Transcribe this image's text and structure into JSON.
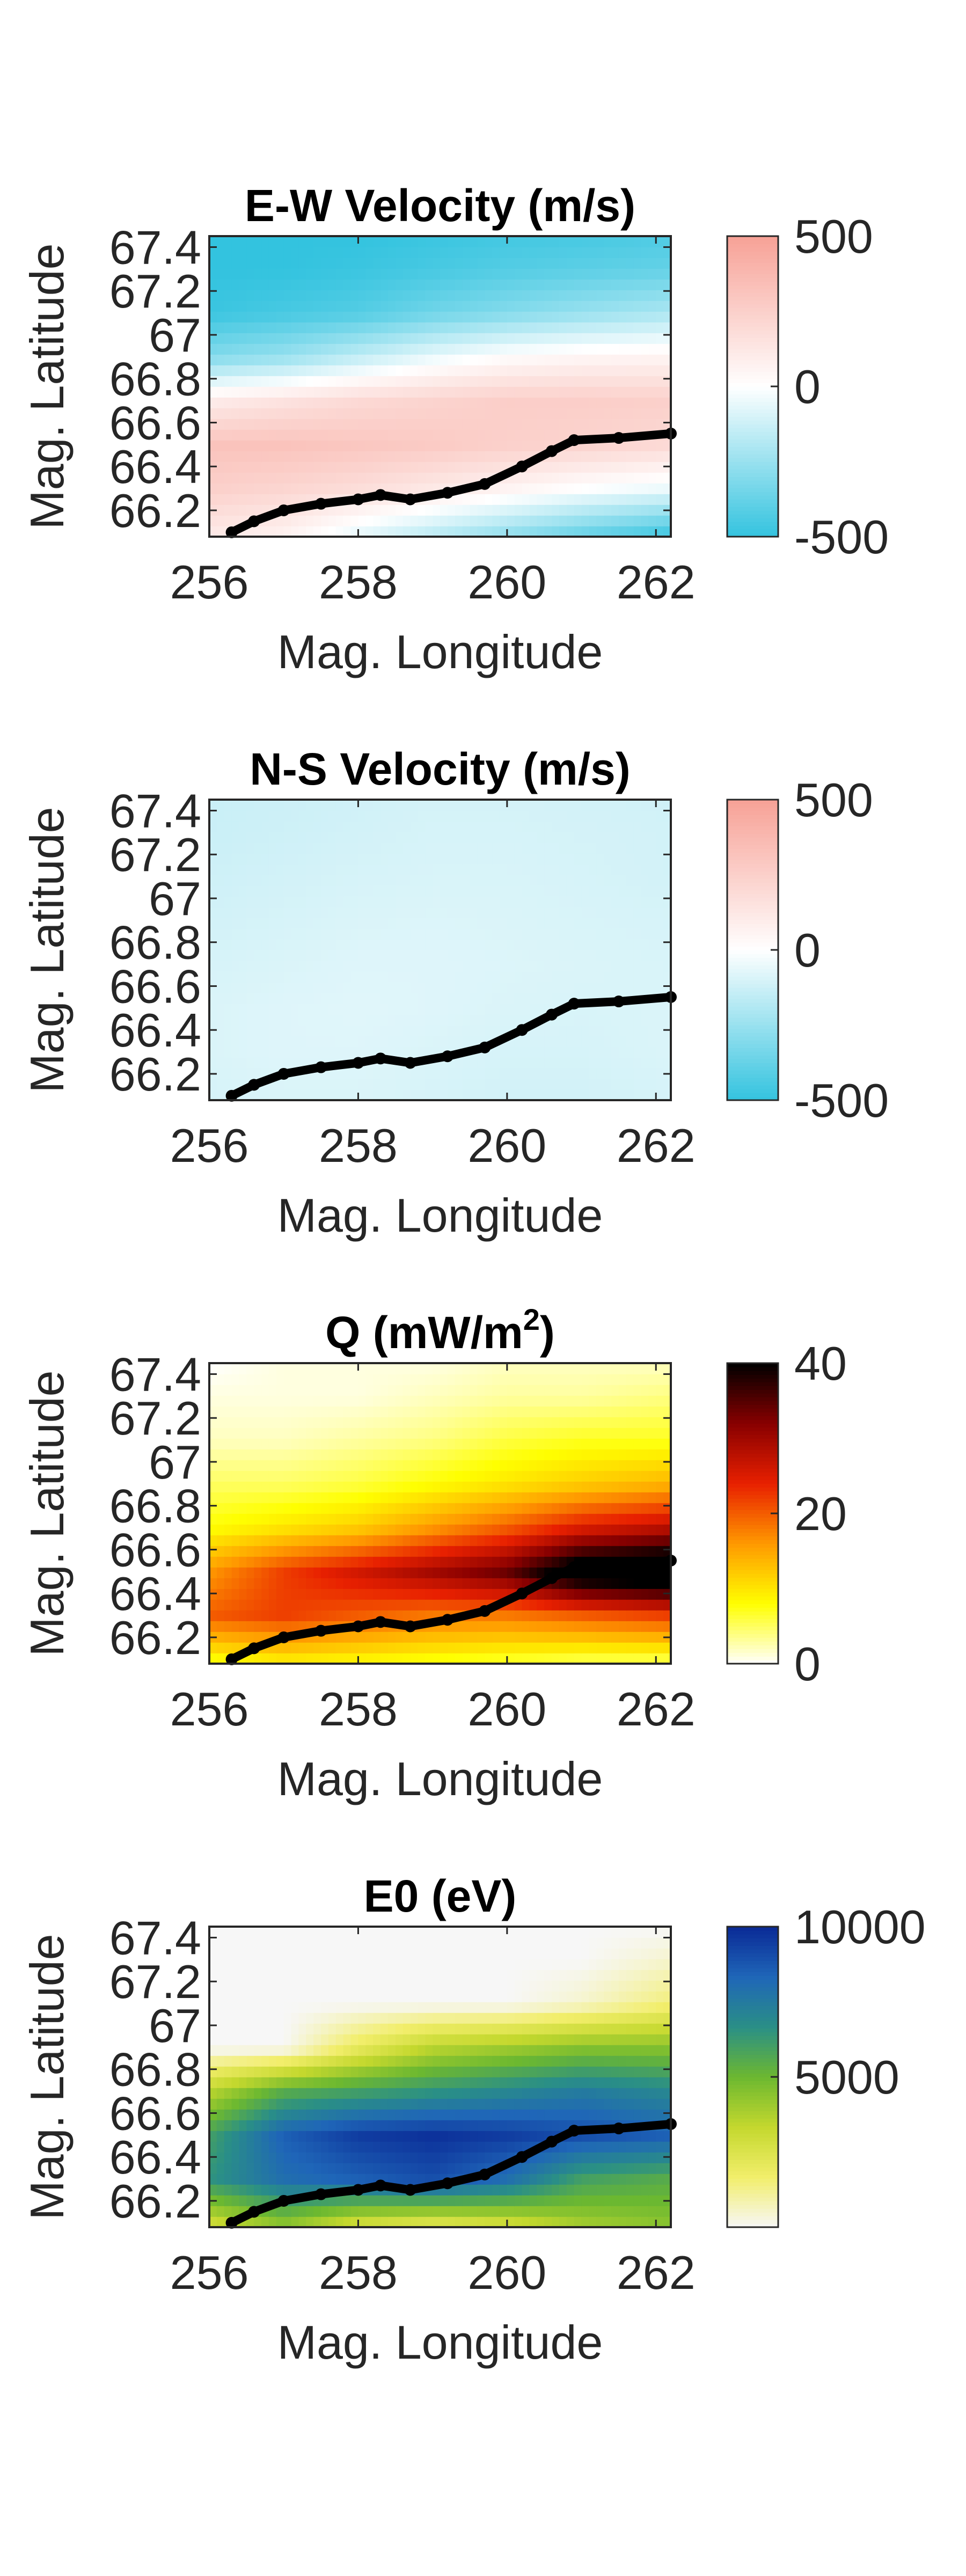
{
  "chart_data": [
    {
      "type": "heatmap",
      "title": "E-W Velocity (m/s)",
      "xlabel": "Mag. Longitude",
      "ylabel": "Mag. Latitude",
      "xlim": [
        256,
        262.2
      ],
      "ylim": [
        66.08,
        67.45
      ],
      "xticks": [
        "256",
        "258",
        "260",
        "262"
      ],
      "yticks": [
        "67.4",
        "67.2",
        "67",
        "66.8",
        "66.6",
        "66.4",
        "66.2"
      ],
      "colorbar": {
        "min": -500,
        "max": 500,
        "ticks": [
          "500",
          "0",
          "-500"
        ],
        "colors": [
          "#33c3df",
          "#ffffff",
          "#f7a196"
        ]
      },
      "x": [
        256,
        257,
        258,
        259,
        260,
        261,
        262.2
      ],
      "y": [
        66.1,
        66.3,
        66.5,
        66.7,
        66.9,
        67.1,
        67.3,
        67.45
      ],
      "z": [
        [
          120,
          80,
          -50,
          -150,
          -250,
          -350,
          -450
        ],
        [
          250,
          220,
          180,
          120,
          60,
          0,
          -50
        ],
        [
          320,
          320,
          300,
          280,
          250,
          230,
          200
        ],
        [
          100,
          150,
          200,
          230,
          260,
          260,
          250
        ],
        [
          -300,
          -250,
          -150,
          -50,
          20,
          50,
          60
        ],
        [
          -480,
          -450,
          -420,
          -350,
          -300,
          -250,
          -200
        ],
        [
          -500,
          -500,
          -480,
          -450,
          -420,
          -400,
          -380
        ],
        [
          -500,
          -500,
          -500,
          -480,
          -460,
          -450,
          -430
        ]
      ],
      "boundary": {
        "x": [
          256.3,
          256.6,
          257,
          257.5,
          258,
          258.3,
          258.7,
          259.2,
          259.7,
          260.2,
          260.6,
          260.9,
          261.5,
          262.2
        ],
        "y": [
          66.1,
          66.15,
          66.2,
          66.23,
          66.25,
          66.27,
          66.25,
          66.28,
          66.32,
          66.4,
          66.47,
          66.52,
          66.53,
          66.55
        ]
      }
    },
    {
      "type": "heatmap",
      "title": "N-S Velocity (m/s)",
      "xlabel": "Mag. Longitude",
      "ylabel": "Mag. Latitude",
      "xlim": [
        256,
        262.2
      ],
      "ylim": [
        66.08,
        67.45
      ],
      "xticks": [
        "256",
        "258",
        "260",
        "262"
      ],
      "yticks": [
        "67.4",
        "67.2",
        "67",
        "66.8",
        "66.6",
        "66.4",
        "66.2"
      ],
      "colorbar": {
        "min": -500,
        "max": 500,
        "ticks": [
          "500",
          "0",
          "-500"
        ],
        "colors": [
          "#33c3df",
          "#ffffff",
          "#f7a196"
        ]
      },
      "x": [
        256,
        257,
        258,
        259,
        260,
        261,
        262.2
      ],
      "y": [
        66.1,
        66.3,
        66.5,
        66.7,
        66.9,
        67.1,
        67.3,
        67.45
      ],
      "z": [
        [
          -100,
          -90,
          -90,
          -100,
          -110,
          -110,
          -100
        ],
        [
          -90,
          -80,
          -80,
          -90,
          -100,
          -100,
          -90
        ],
        [
          -90,
          -80,
          -75,
          -80,
          -90,
          -95,
          -90
        ],
        [
          -100,
          -90,
          -80,
          -80,
          -85,
          -90,
          -95
        ],
        [
          -110,
          -100,
          -90,
          -85,
          -90,
          -95,
          -100
        ],
        [
          -120,
          -110,
          -100,
          -95,
          -95,
          -100,
          -110
        ],
        [
          -130,
          -120,
          -110,
          -100,
          -100,
          -105,
          -110
        ],
        [
          -130,
          -125,
          -115,
          -105,
          -105,
          -110,
          -115
        ]
      ],
      "boundary": {
        "x": [
          256.3,
          256.6,
          257,
          257.5,
          258,
          258.3,
          258.7,
          259.2,
          259.7,
          260.2,
          260.6,
          260.9,
          261.5,
          262.2
        ],
        "y": [
          66.1,
          66.15,
          66.2,
          66.23,
          66.25,
          66.27,
          66.25,
          66.28,
          66.32,
          66.4,
          66.47,
          66.52,
          66.53,
          66.55
        ]
      }
    },
    {
      "type": "heatmap",
      "title": "Q (mW/m",
      "title_sup": "2",
      "title_end": ")",
      "xlabel": "Mag. Longitude",
      "ylabel": "Mag. Latitude",
      "xlim": [
        256,
        262.2
      ],
      "ylim": [
        66.08,
        67.45
      ],
      "xticks": [
        "256",
        "258",
        "260",
        "262"
      ],
      "yticks": [
        "67.4",
        "67.2",
        "67",
        "66.8",
        "66.6",
        "66.4",
        "66.2"
      ],
      "colorbar": {
        "min": 0,
        "max": 40,
        "ticks": [
          "40",
          "20",
          "0"
        ],
        "colors": [
          "#ffffff",
          "#ffff00",
          "#ff9900",
          "#e82000",
          "#880000",
          "#000000"
        ]
      },
      "x": [
        256,
        257,
        258,
        259,
        260,
        261,
        262.2
      ],
      "y": [
        66.1,
        66.3,
        66.5,
        66.7,
        66.9,
        67.1,
        67.3,
        67.45
      ],
      "z": [
        [
          8,
          10,
          9,
          8,
          7,
          6,
          6
        ],
        [
          20,
          22,
          20,
          18,
          18,
          20,
          22
        ],
        [
          16,
          22,
          26,
          30,
          34,
          45,
          48
        ],
        [
          8,
          10,
          12,
          16,
          20,
          25,
          28
        ],
        [
          5,
          5,
          6,
          8,
          10,
          12,
          14
        ],
        [
          2,
          2,
          3,
          4,
          6,
          7,
          7
        ],
        [
          1,
          1,
          1,
          2,
          3,
          3,
          4
        ],
        [
          0,
          1,
          1,
          1,
          2,
          2,
          2
        ]
      ],
      "boundary": {
        "x": [
          256.3,
          256.6,
          257,
          257.5,
          258,
          258.3,
          258.7,
          259.2,
          259.7,
          260.2,
          260.6,
          260.9,
          261.5,
          262.2
        ],
        "y": [
          66.1,
          66.15,
          66.2,
          66.23,
          66.25,
          66.27,
          66.25,
          66.28,
          66.32,
          66.4,
          66.47,
          66.52,
          66.53,
          66.55
        ]
      }
    },
    {
      "type": "heatmap",
      "title": "E0 (eV)",
      "xlabel": "Mag. Longitude",
      "ylabel": "Mag. Latitude",
      "xlim": [
        256,
        262.2
      ],
      "ylim": [
        66.08,
        67.45
      ],
      "xticks": [
        "256",
        "258",
        "260",
        "262"
      ],
      "yticks": [
        "67.4",
        "67.2",
        "67",
        "66.8",
        "66.6",
        "66.4",
        "66.2"
      ],
      "colorbar": {
        "min": 0,
        "max": 10000,
        "ticks": [
          "10000",
          "5000"
        ],
        "colors": [
          "#f7f7f7",
          "#f2ee6b",
          "#c4d82e",
          "#6cb830",
          "#2a8f86",
          "#1f66b8",
          "#0a2a96"
        ]
      },
      "x": [
        256,
        257,
        258,
        259,
        260,
        261,
        262.2
      ],
      "y": [
        66.1,
        66.3,
        66.5,
        66.7,
        66.9,
        67.1,
        67.3,
        67.45
      ],
      "z": [
        [
          3000,
          4500,
          3000,
          2500,
          3000,
          4000,
          4500
        ],
        [
          6500,
          8000,
          8500,
          9000,
          8000,
          6000,
          5500
        ],
        [
          6000,
          8500,
          9500,
          9800,
          9500,
          9000,
          8500
        ],
        [
          3500,
          5500,
          6000,
          6500,
          7000,
          7500,
          7000
        ],
        [
          0,
          0,
          2000,
          3500,
          4000,
          4500,
          4500
        ],
        [
          0,
          0,
          0,
          0,
          0,
          500,
          1500
        ],
        [
          0,
          0,
          0,
          0,
          0,
          0,
          500
        ],
        [
          0,
          0,
          0,
          0,
          0,
          0,
          0
        ]
      ],
      "boundary": {
        "x": [
          256.3,
          256.6,
          257,
          257.5,
          258,
          258.3,
          258.7,
          259.2,
          259.7,
          260.2,
          260.6,
          260.9,
          261.5,
          262.2
        ],
        "y": [
          66.1,
          66.15,
          66.2,
          66.23,
          66.25,
          66.27,
          66.25,
          66.28,
          66.32,
          66.4,
          66.47,
          66.52,
          66.53,
          66.55
        ]
      }
    }
  ]
}
